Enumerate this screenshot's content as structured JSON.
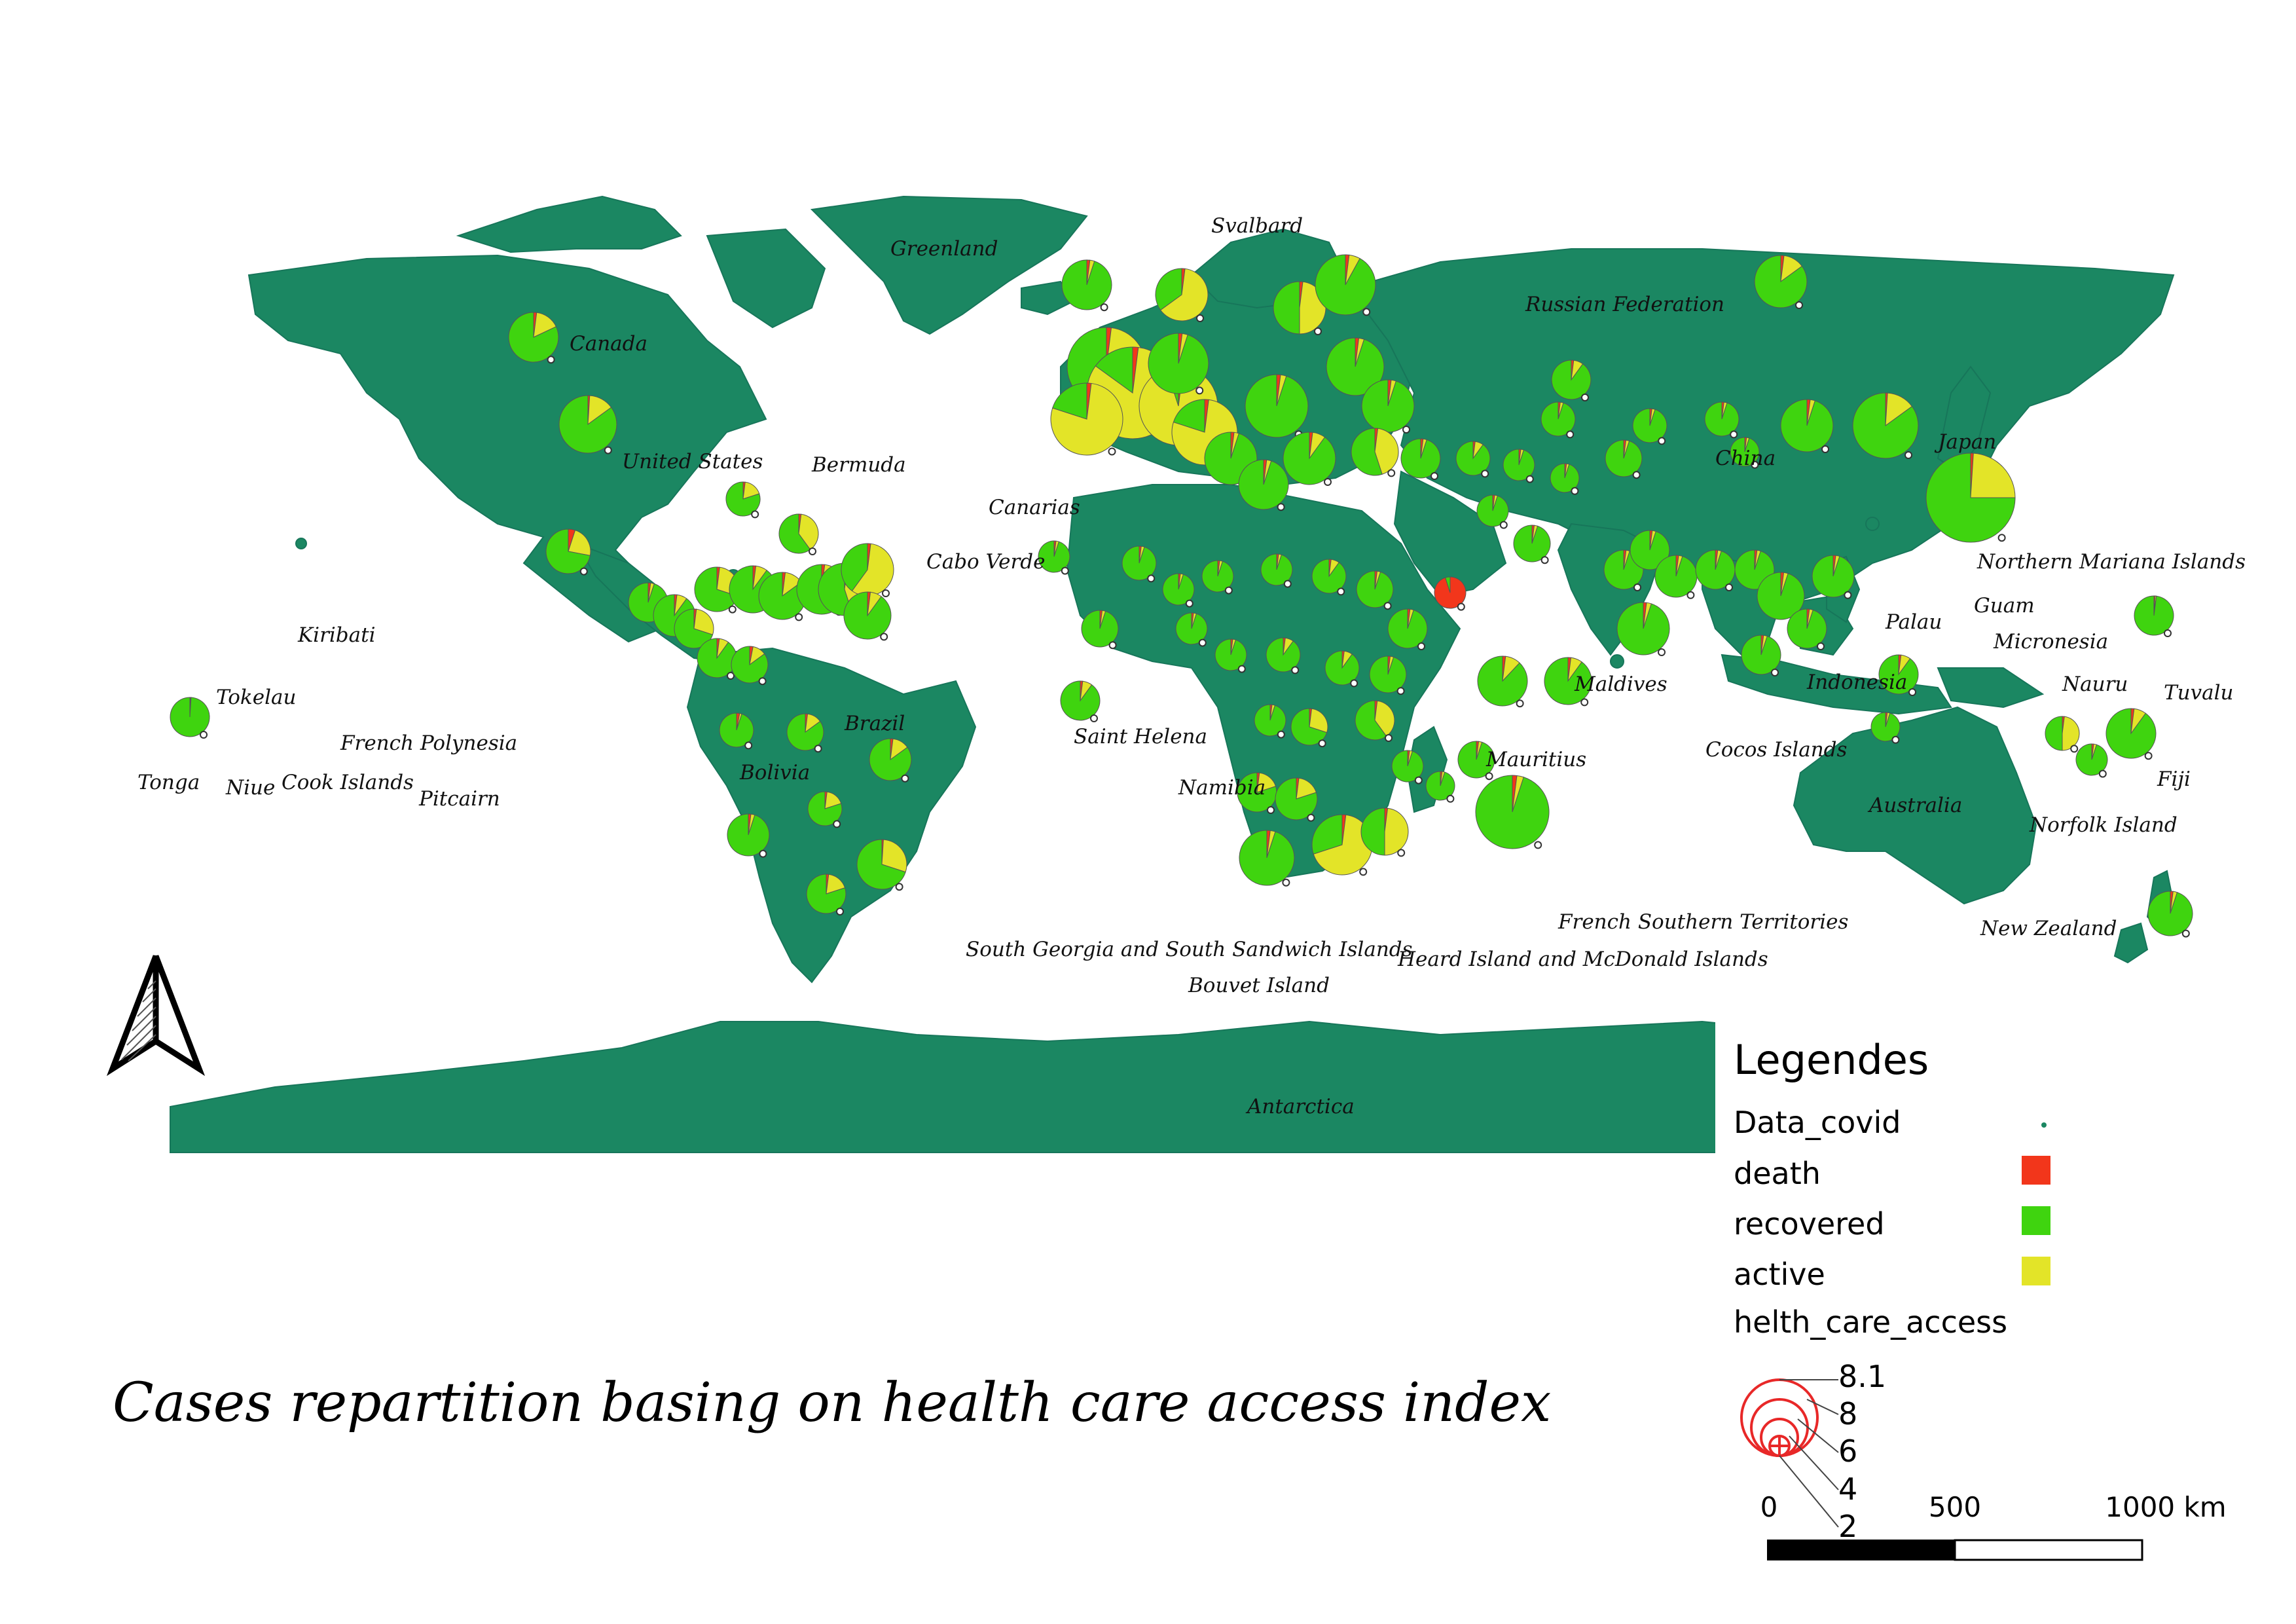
{
  "title": "Cases repartition basing on health care access index",
  "colors": {
    "land": "#1b8762",
    "death": "#f2361b",
    "recovered": "#3fd40f",
    "active": "#e3e428",
    "size_ring": "#e82828"
  },
  "place_labels": [
    "Greenland",
    "Svalbard",
    "Canada",
    "Russian Federation",
    "United States",
    "Bermuda",
    "China",
    "Japan",
    "Canarias",
    "Cabo Verde",
    "Northern Mariana Islands",
    "Guam",
    "Palau",
    "Micronesia",
    "Kiribati",
    "Tokelau",
    "Nauru",
    "Tuvalu",
    "Maldives",
    "Indonesia",
    "Brazil",
    "French Polynesia",
    "Tonga",
    "Niue",
    "Cook Islands",
    "Pitcairn",
    "Bolivia",
    "Saint Helena",
    "Mauritius",
    "Cocos Islands",
    "Fiji",
    "Australia",
    "Namibia",
    "Norfolk Island",
    "South Georgia and South Sandwich Islands",
    "Heard Island and McDonald Islands",
    "French Southern Territories",
    "Bouvet Island",
    "New Zealand",
    "Antarctica"
  ],
  "legend": {
    "heading": "Legendes",
    "layer": "Data_covid",
    "categories": [
      {
        "label": "death",
        "color": "#f2361b"
      },
      {
        "label": "recovered",
        "color": "#3fd40f"
      },
      {
        "label": "active",
        "color": "#e3e428"
      }
    ],
    "size_title": "helth_care_access",
    "size_values": [
      "8.1",
      "8",
      "6",
      "4",
      "2"
    ]
  },
  "scale_bar": {
    "labels": [
      "0",
      "500",
      "1000 km"
    ]
  },
  "north_arrow": {
    "icon": "north-arrow-icon"
  }
}
